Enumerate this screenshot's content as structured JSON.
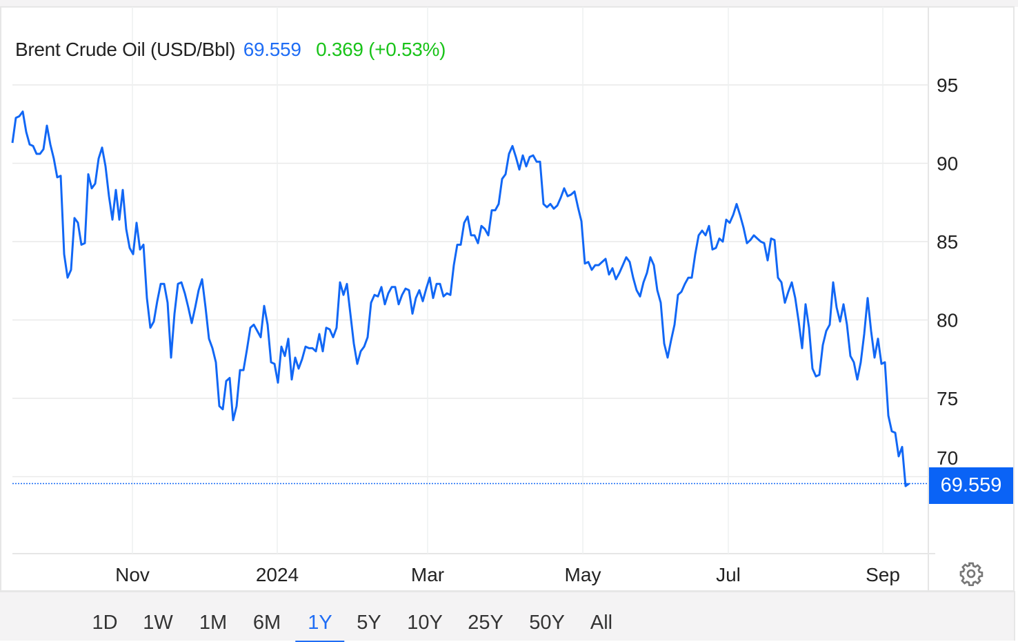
{
  "header": {
    "instrument": "Brent Crude Oil (USD/Bbl)",
    "price": "69.559",
    "change": "0.369 (+0.53%)"
  },
  "price_badge": "69.559",
  "range_buttons": [
    {
      "label": "1D"
    },
    {
      "label": "1W"
    },
    {
      "label": "1M"
    },
    {
      "label": "6M"
    },
    {
      "label": "1Y",
      "active": true
    },
    {
      "label": "5Y"
    },
    {
      "label": "10Y"
    },
    {
      "label": "25Y"
    },
    {
      "label": "50Y"
    },
    {
      "label": "All"
    }
  ],
  "colors": {
    "line": "#1167f5",
    "badge": "#0a63f6",
    "change": "#19c319",
    "active": "#1f6df5"
  },
  "chart_data": {
    "type": "line",
    "title": "Brent Crude Oil (USD/Bbl)",
    "xlabel": "",
    "ylabel": "",
    "ylim": [
      65.1,
      100.4
    ],
    "y_ticks": [
      70,
      75,
      80,
      85,
      90,
      95
    ],
    "y_tick_labels": [
      "70",
      "75",
      "80",
      "85",
      "90",
      "95"
    ],
    "x_ticks": [
      {
        "label": "Nov",
        "index": 34.8
      },
      {
        "label": "2024",
        "index": 76.8
      },
      {
        "label": "Mar",
        "index": 120.4
      },
      {
        "label": "May",
        "index": 165.4
      },
      {
        "label": "Jul",
        "index": 207.6
      },
      {
        "label": "Sep",
        "index": 252.4
      }
    ],
    "grid": true,
    "last_value": 69.559,
    "series": [
      {
        "name": "Brent Crude Oil",
        "values": [
          91.3,
          92.9,
          93.0,
          93.3,
          92.0,
          91.2,
          91.1,
          90.6,
          90.6,
          90.9,
          92.4,
          91.2,
          90.3,
          89.1,
          89.2,
          84.2,
          82.7,
          83.2,
          86.5,
          86.2,
          84.8,
          84.9,
          89.3,
          88.4,
          88.7,
          90.3,
          91.0,
          89.8,
          87.9,
          86.4,
          88.3,
          86.4,
          88.3,
          85.8,
          84.6,
          84.2,
          86.2,
          84.5,
          84.8,
          81.4,
          79.5,
          79.9,
          81.2,
          82.3,
          82.3,
          81.1,
          77.6,
          80.4,
          82.3,
          82.4,
          81.7,
          80.8,
          79.8,
          80.8,
          81.9,
          82.6,
          80.8,
          78.8,
          78.2,
          77.3,
          74.5,
          74.3,
          76.1,
          76.3,
          73.6,
          74.5,
          76.8,
          76.8,
          78.1,
          79.5,
          79.7,
          79.3,
          78.9,
          80.9,
          79.7,
          77.3,
          77.2,
          76.0,
          78.3,
          77.7,
          78.8,
          76.2,
          77.6,
          76.9,
          77.5,
          78.3,
          78.2,
          78.2,
          78.0,
          79.1,
          78.0,
          79.5,
          79.4,
          78.9,
          79.5,
          82.4,
          81.6,
          82.3,
          80.4,
          78.5,
          77.2,
          78.0,
          78.3,
          78.9,
          81.1,
          81.6,
          81.5,
          82.1,
          81.0,
          81.7,
          82.1,
          82.1,
          81.0,
          81.6,
          82.0,
          81.9,
          80.4,
          81.4,
          81.9,
          81.2,
          82.0,
          82.7,
          81.4,
          82.3,
          82.3,
          81.5,
          81.7,
          81.6,
          83.5,
          84.8,
          84.8,
          86.2,
          86.6,
          85.4,
          85.4,
          84.9,
          86.0,
          85.8,
          85.4,
          87.0,
          87.0,
          87.4,
          89.0,
          89.3,
          90.6,
          91.1,
          90.4,
          89.6,
          90.5,
          89.8,
          90.4,
          90.5,
          90.1,
          90.1,
          87.4,
          87.2,
          87.4,
          87.1,
          87.3,
          87.8,
          88.4,
          87.9,
          88.0,
          88.2,
          87.2,
          86.3,
          83.6,
          83.7,
          83.2,
          83.5,
          83.5,
          83.7,
          83.9,
          82.9,
          83.3,
          82.6,
          83.0,
          83.5,
          84.0,
          83.7,
          82.7,
          81.9,
          81.5,
          82.4,
          83.0,
          84.0,
          83.5,
          81.9,
          81.1,
          78.5,
          77.6,
          78.7,
          79.7,
          81.6,
          81.8,
          82.3,
          82.7,
          82.7,
          84.2,
          85.4,
          85.7,
          85.4,
          86.0,
          84.5,
          84.6,
          85.2,
          85.0,
          86.4,
          86.2,
          86.7,
          87.4,
          86.7,
          85.9,
          84.9,
          85.1,
          85.4,
          85.2,
          85.0,
          84.9,
          83.8,
          85.2,
          85.1,
          82.7,
          82.4,
          81.1,
          81.8,
          82.4,
          81.4,
          79.9,
          78.2,
          81.0,
          79.5,
          76.9,
          76.4,
          76.5,
          78.4,
          79.3,
          79.7,
          82.4,
          80.8,
          79.9,
          81.0,
          79.7,
          77.7,
          77.3,
          76.2,
          77.3,
          79.1,
          81.4,
          79.3,
          77.6,
          78.8,
          77.2,
          77.3,
          73.9,
          72.9,
          72.8,
          71.3,
          71.9,
          69.4,
          69.559
        ]
      }
    ]
  }
}
